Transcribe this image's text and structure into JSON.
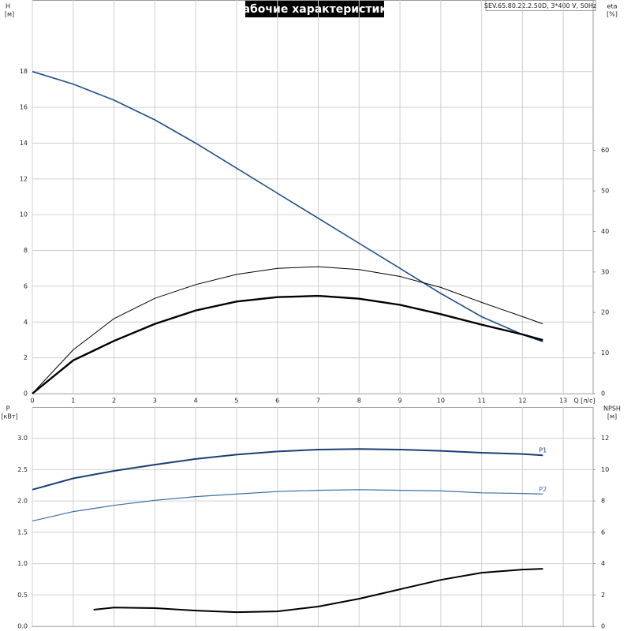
{
  "header": {
    "title": "Рабочие характеристики",
    "model": "SEV.65.80.22.2.50D, 3*400 V, 50Hz"
  },
  "chart_data": [
    {
      "type": "line",
      "ylabel": "H",
      "yunit": "[м]",
      "y2label": "eta",
      "y2unit": "[%]",
      "xlabel": "Q [л/с]",
      "xlim": [
        0,
        13.73
      ],
      "xticks": [
        0,
        1,
        2,
        3,
        4,
        5,
        6,
        7,
        8,
        9,
        10,
        11,
        12,
        13
      ],
      "xtick_labels": true,
      "ylim": [
        0,
        22
      ],
      "yticks": [
        0,
        2,
        4,
        6,
        8,
        10,
        12,
        14,
        16,
        18
      ],
      "y2lim": [
        0,
        97.1
      ],
      "y2ticks": [
        0,
        10,
        20,
        30,
        40,
        50,
        60
      ],
      "grid": true,
      "series": [
        {
          "color": "#1f4e8c",
          "width": 1.6,
          "x": [
            0,
            1,
            2,
            3,
            4,
            5,
            6,
            7,
            8,
            9,
            10,
            11,
            12,
            12.5
          ],
          "values": [
            18,
            17.3,
            16.4,
            15.3,
            14.0,
            12.6,
            11.2,
            9.8,
            8.4,
            7.0,
            5.6,
            4.3,
            3.3,
            2.9
          ]
        },
        {
          "color": "#000000",
          "width": 1,
          "axis": "y2",
          "x": [
            0,
            1,
            2,
            3,
            4,
            5,
            6,
            7,
            8,
            9,
            10,
            11,
            12,
            12.5
          ],
          "values": [
            0,
            10.8,
            18.5,
            23.5,
            26.9,
            29.4,
            30.9,
            31.3,
            30.6,
            28.9,
            26.2,
            22.5,
            19.0,
            17.2
          ]
        },
        {
          "color": "#000000",
          "width": 2.4,
          "axis": "y2",
          "x": [
            0,
            1,
            2,
            3,
            4,
            5,
            6,
            7,
            8,
            9,
            10,
            11,
            12,
            12.5
          ],
          "values": [
            0,
            8.2,
            13.0,
            17.2,
            20.5,
            22.7,
            23.8,
            24.1,
            23.4,
            21.9,
            19.6,
            17.0,
            14.6,
            13.2
          ]
        }
      ]
    },
    {
      "type": "line",
      "ylabel": "P",
      "yunit": "[кВт]",
      "y2label": "NPSH",
      "y2unit": "[м]",
      "xlim": [
        0,
        13.73
      ],
      "xticks": [
        0,
        1,
        2,
        3,
        4,
        5,
        6,
        7,
        8,
        9,
        10,
        11,
        12,
        13
      ],
      "xtick_labels": false,
      "ylim": [
        0,
        3.5
      ],
      "yticks": [
        {
          "value": 0,
          "label": "0.0"
        },
        0.5,
        {
          "value": 1,
          "label": "1.0"
        },
        1.5,
        {
          "value": 2,
          "label": "2.0"
        },
        2.5,
        {
          "value": 3,
          "label": "3.0"
        }
      ],
      "y2lim": [
        0,
        14
      ],
      "y2ticks": [
        0,
        2,
        4,
        6,
        8,
        10,
        12
      ],
      "grid": true,
      "series": [
        {
          "name": "P1",
          "color": "#1a3f73",
          "width": 2,
          "x": [
            0,
            1,
            2,
            3,
            4,
            5,
            6,
            7,
            8,
            9,
            10,
            11,
            12,
            12.5
          ],
          "values": [
            2.18,
            2.36,
            2.48,
            2.58,
            2.67,
            2.74,
            2.79,
            2.82,
            2.83,
            2.82,
            2.8,
            2.77,
            2.75,
            2.73
          ]
        },
        {
          "name": "P2",
          "color": "#3a6ea5",
          "width": 1.2,
          "x": [
            0,
            1,
            2,
            3,
            4,
            5,
            6,
            7,
            8,
            9,
            10,
            11,
            12,
            12.5
          ],
          "values": [
            1.68,
            1.83,
            1.93,
            2.01,
            2.07,
            2.11,
            2.15,
            2.17,
            2.18,
            2.17,
            2.16,
            2.13,
            2.12,
            2.11
          ]
        },
        {
          "color": "#000000",
          "width": 2,
          "axis": "y2",
          "x": [
            1.5,
            2,
            3,
            4,
            5,
            6,
            7,
            8,
            9,
            10,
            11,
            12,
            12.5
          ],
          "values": [
            1.06,
            1.2,
            1.16,
            1.0,
            0.9,
            0.95,
            1.26,
            1.76,
            2.36,
            2.96,
            3.42,
            3.62,
            3.67
          ]
        }
      ]
    }
  ]
}
